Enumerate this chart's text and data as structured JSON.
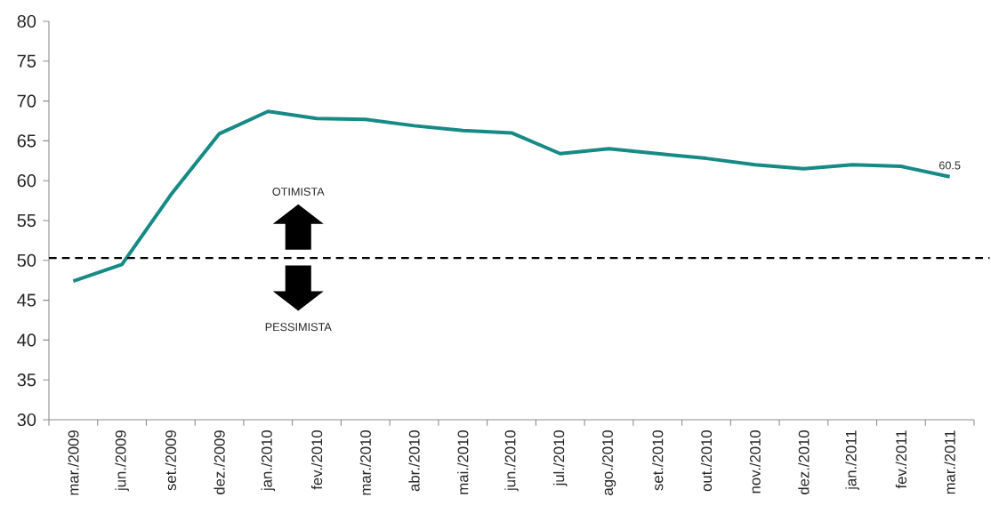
{
  "chart_data": {
    "type": "line",
    "categories": [
      "mar./2009",
      "jun./2009",
      "set./2009",
      "dez./2009",
      "jan./2010",
      "fev./2010",
      "mar./2010",
      "abr./2010",
      "mai./2010",
      "jun./2010",
      "jul./2010",
      "ago./2010",
      "set./2010",
      "out./2010",
      "nov./2010",
      "dez./2010",
      "jan./2011",
      "fev./2011",
      "mar./2011"
    ],
    "values": [
      47.4,
      49.5,
      58.2,
      65.9,
      68.7,
      67.8,
      67.7,
      66.9,
      66.3,
      66.0,
      63.4,
      64.0,
      63.4,
      62.8,
      62.0,
      61.5,
      62.0,
      61.8,
      60.5
    ],
    "value_labels": [
      null,
      null,
      null,
      null,
      null,
      null,
      null,
      null,
      null,
      null,
      null,
      null,
      null,
      null,
      null,
      null,
      null,
      null,
      "60.5"
    ],
    "color": "#178a85",
    "marker": "none",
    "line_style": "solid",
    "ylim": [
      30,
      80
    ],
    "yticks": [
      30,
      35,
      40,
      45,
      50,
      55,
      60,
      65,
      70,
      75,
      80
    ],
    "ref_lines": [
      {
        "axis": "y",
        "value": 50.3,
        "color": "#000000",
        "line_style": "dashed"
      }
    ],
    "annotations": [
      "OTIMISTA",
      "PESSIMISTA"
    ]
  }
}
